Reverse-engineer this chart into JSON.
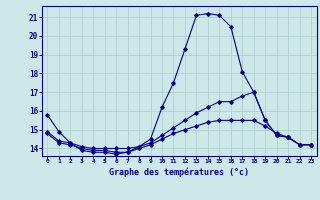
{
  "title": "Graphe des températures (°c)",
  "bg_color": "#cce8e8",
  "line_color": "#00008b",
  "grid_color": "#aacccc",
  "xlim": [
    -0.5,
    23.5
  ],
  "ylim": [
    13.6,
    21.6
  ],
  "yticks": [
    14,
    15,
    16,
    17,
    18,
    19,
    20,
    21
  ],
  "xticks": [
    0,
    1,
    2,
    3,
    4,
    5,
    6,
    7,
    8,
    9,
    10,
    11,
    12,
    13,
    14,
    15,
    16,
    17,
    18,
    19,
    20,
    21,
    22,
    23
  ],
  "series": {
    "line1": {
      "x": [
        0,
        1,
        2,
        3,
        4,
        5,
        6,
        7,
        8,
        9,
        10,
        11,
        12,
        13,
        14,
        15,
        16,
        17,
        18,
        19,
        20,
        21,
        22,
        23
      ],
      "y": [
        15.8,
        14.9,
        14.3,
        13.9,
        13.8,
        13.8,
        13.7,
        13.8,
        14.1,
        14.5,
        16.2,
        17.5,
        19.3,
        21.1,
        21.2,
        21.1,
        20.5,
        18.1,
        17.0,
        15.5,
        14.7,
        14.6,
        14.2,
        14.2
      ]
    },
    "line2": {
      "x": [
        0,
        1,
        2,
        3,
        4,
        5,
        6,
        7,
        8,
        9,
        10,
        11,
        12,
        13,
        14,
        15,
        16,
        17,
        18,
        19,
        20,
        21,
        22,
        23
      ],
      "y": [
        14.9,
        14.4,
        14.3,
        14.1,
        14.0,
        14.0,
        14.0,
        14.0,
        14.1,
        14.3,
        14.7,
        15.1,
        15.5,
        15.9,
        16.2,
        16.5,
        16.5,
        16.8,
        17.0,
        15.5,
        14.7,
        14.6,
        14.2,
        14.2
      ]
    },
    "line3": {
      "x": [
        0,
        1,
        2,
        3,
        4,
        5,
        6,
        7,
        8,
        9,
        10,
        11,
        12,
        13,
        14,
        15,
        16,
        17,
        18,
        19,
        20,
        21,
        22,
        23
      ],
      "y": [
        14.8,
        14.3,
        14.2,
        14.0,
        13.9,
        13.9,
        13.8,
        13.8,
        14.0,
        14.2,
        14.5,
        14.8,
        15.0,
        15.2,
        15.4,
        15.5,
        15.5,
        15.5,
        15.5,
        15.2,
        14.8,
        14.6,
        14.2,
        14.2
      ]
    }
  }
}
